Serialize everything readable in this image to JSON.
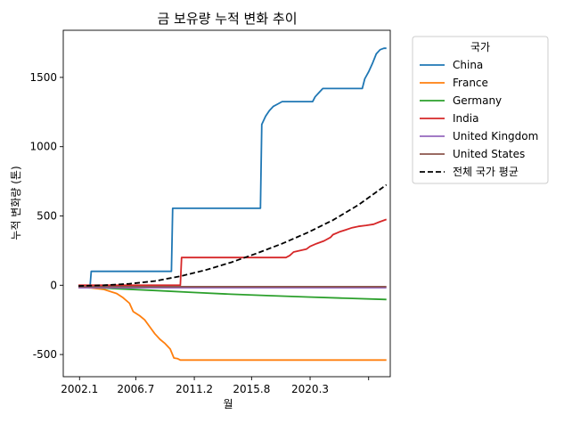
{
  "chart_data": {
    "type": "line",
    "title": "금 보유량 누적 변화 추이",
    "xlabel": "월",
    "ylabel": "누적 변화량 (톤)",
    "x_tick_labels": [
      "2002.1",
      "2006.7",
      "2011.2",
      "2015.8",
      "2020.3",
      ""
    ],
    "y_ticks": [
      -500,
      0,
      500,
      1000,
      1500
    ],
    "y_tick_labels": [
      "-500",
      "0",
      "500",
      "1000",
      "1500"
    ],
    "xlim": [
      2000.8,
      2026.5
    ],
    "ylim": [
      -660,
      1840
    ],
    "grid": false,
    "legend": {
      "title": "국가",
      "placement": "outside-right-top"
    },
    "series": [
      {
        "name": "China",
        "color": "#1f77b4",
        "style": "solid",
        "points": [
          [
            2002.0,
            -15
          ],
          [
            2002.9,
            -15
          ],
          [
            2003.0,
            100
          ],
          [
            2009.3,
            100
          ],
          [
            2009.4,
            555
          ],
          [
            2016.3,
            555
          ],
          [
            2016.4,
            1160
          ],
          [
            2016.7,
            1220
          ],
          [
            2017.0,
            1260
          ],
          [
            2017.3,
            1290
          ],
          [
            2017.7,
            1310
          ],
          [
            2018.0,
            1325
          ],
          [
            2019.2,
            1325
          ],
          [
            2020.4,
            1325
          ],
          [
            2020.6,
            1360
          ],
          [
            2020.9,
            1390
          ],
          [
            2021.2,
            1420
          ],
          [
            2023.3,
            1420
          ],
          [
            2024.3,
            1420
          ],
          [
            2024.5,
            1490
          ],
          [
            2024.8,
            1540
          ],
          [
            2025.1,
            1600
          ],
          [
            2025.4,
            1670
          ],
          [
            2025.7,
            1700
          ],
          [
            2026.0,
            1710
          ],
          [
            2026.2,
            1710
          ]
        ]
      },
      {
        "name": "France",
        "color": "#ff7f0e",
        "style": "solid",
        "points": [
          [
            2002.0,
            -15
          ],
          [
            2003.0,
            -20
          ],
          [
            2004.0,
            -30
          ],
          [
            2005.0,
            -60
          ],
          [
            2005.5,
            -90
          ],
          [
            2006.0,
            -130
          ],
          [
            2006.3,
            -190
          ],
          [
            2006.8,
            -220
          ],
          [
            2007.2,
            -250
          ],
          [
            2007.6,
            -300
          ],
          [
            2008.0,
            -350
          ],
          [
            2008.4,
            -390
          ],
          [
            2008.8,
            -420
          ],
          [
            2009.2,
            -460
          ],
          [
            2009.5,
            -525
          ],
          [
            2009.8,
            -530
          ],
          [
            2010.0,
            -540
          ],
          [
            2026.2,
            -540
          ]
        ]
      },
      {
        "name": "Germany",
        "color": "#2ca02c",
        "style": "solid",
        "points": [
          [
            2002.0,
            -10
          ],
          [
            2005.0,
            -25
          ],
          [
            2008.0,
            -38
          ],
          [
            2011.0,
            -52
          ],
          [
            2014.0,
            -65
          ],
          [
            2017.0,
            -75
          ],
          [
            2020.0,
            -85
          ],
          [
            2023.0,
            -94
          ],
          [
            2026.2,
            -103
          ]
        ]
      },
      {
        "name": "India",
        "color": "#d62728",
        "style": "solid",
        "points": [
          [
            2002.0,
            0
          ],
          [
            2010.0,
            0
          ],
          [
            2010.1,
            200
          ],
          [
            2018.3,
            200
          ],
          [
            2018.6,
            215
          ],
          [
            2018.9,
            240
          ],
          [
            2019.4,
            250
          ],
          [
            2019.9,
            260
          ],
          [
            2020.2,
            280
          ],
          [
            2020.7,
            300
          ],
          [
            2021.3,
            320
          ],
          [
            2021.8,
            345
          ],
          [
            2022.0,
            365
          ],
          [
            2022.5,
            385
          ],
          [
            2023.0,
            400
          ],
          [
            2023.5,
            415
          ],
          [
            2024.0,
            425
          ],
          [
            2024.6,
            432
          ],
          [
            2025.2,
            440
          ],
          [
            2025.6,
            455
          ],
          [
            2026.2,
            475
          ]
        ]
      },
      {
        "name": "United Kingdom",
        "color": "#9467bd",
        "style": "solid",
        "points": [
          [
            2002.0,
            -18
          ],
          [
            2026.2,
            -18
          ]
        ]
      },
      {
        "name": "United States",
        "color": "#8c564b",
        "style": "solid",
        "points": [
          [
            2002.0,
            -10
          ],
          [
            2026.2,
            -10
          ]
        ]
      },
      {
        "name": "전체 국가 평균",
        "color": "#000000",
        "style": "dashed",
        "points": [
          [
            2002.0,
            -5
          ],
          [
            2004.0,
            0
          ],
          [
            2006.0,
            10
          ],
          [
            2008.0,
            30
          ],
          [
            2010.0,
            65
          ],
          [
            2012.0,
            110
          ],
          [
            2014.0,
            165
          ],
          [
            2016.0,
            230
          ],
          [
            2018.0,
            300
          ],
          [
            2020.0,
            380
          ],
          [
            2022.0,
            470
          ],
          [
            2024.0,
            580
          ],
          [
            2026.2,
            725
          ]
        ]
      }
    ]
  }
}
